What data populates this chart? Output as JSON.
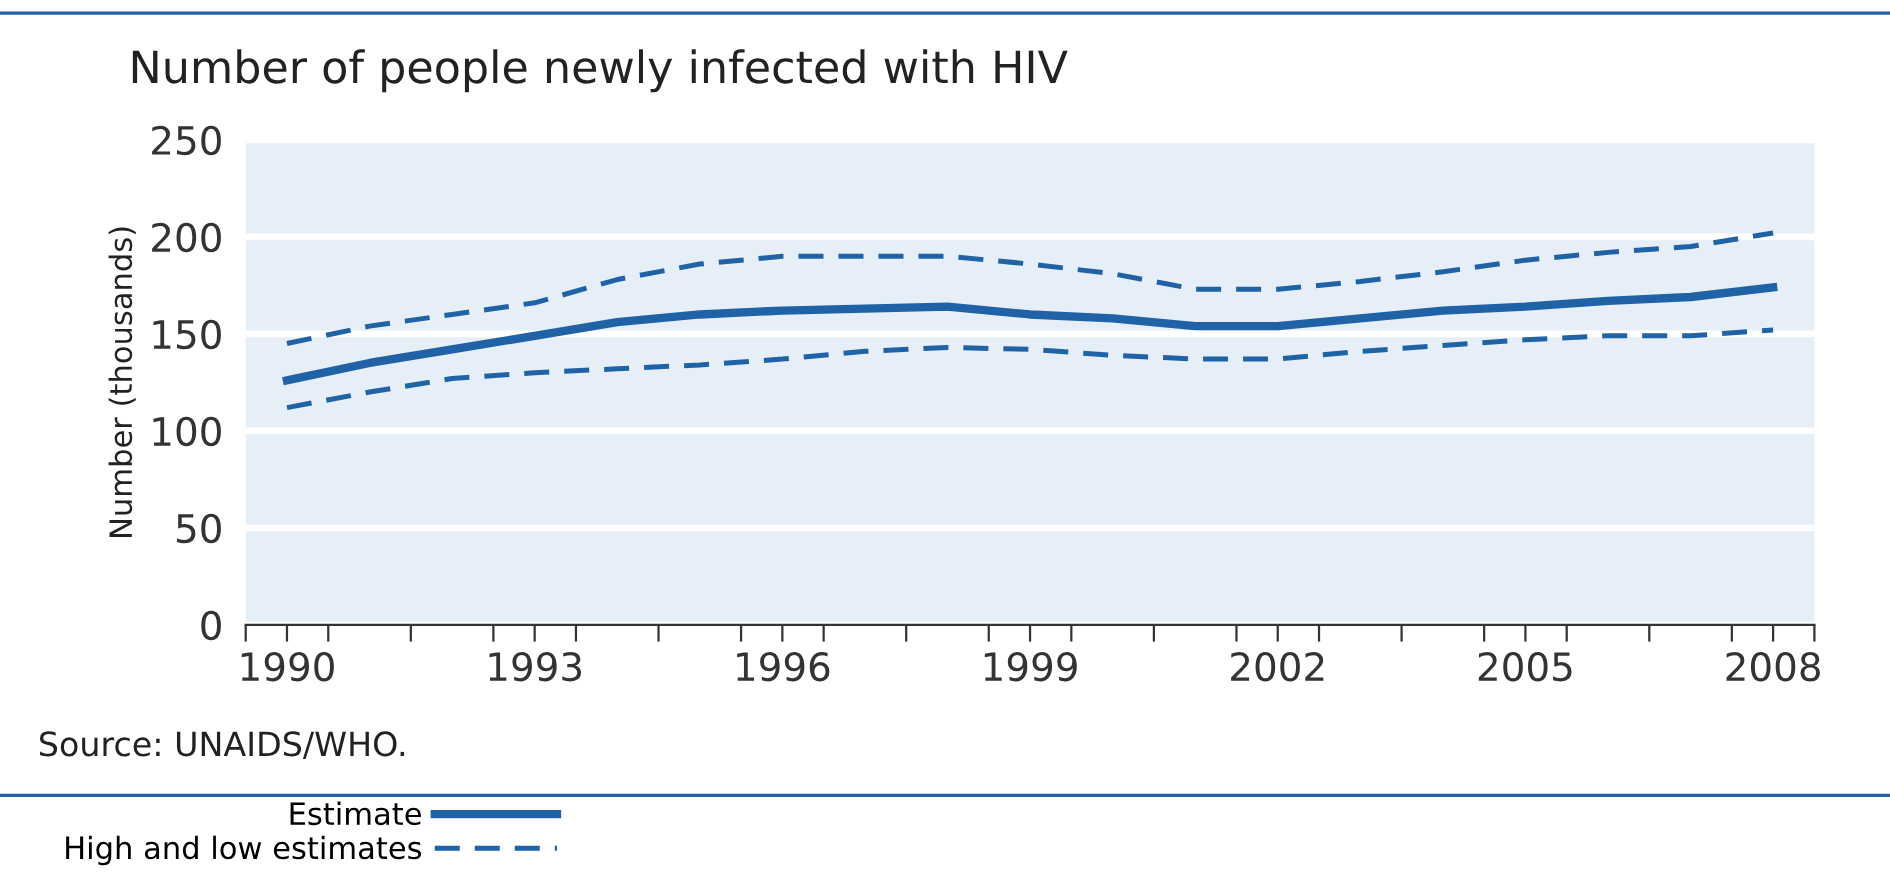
{
  "chart_data": {
    "type": "line",
    "title": "Number of people newly infected with HIV",
    "ylabel": "Number (thousands)",
    "x": [
      1990.5,
      1991.5,
      1992.5,
      1993.5,
      1994.5,
      1995.5,
      1996.5,
      1997.5,
      1998.5,
      1999.5,
      2000.5,
      2001.5,
      2002.5,
      2003.5,
      2004.5,
      2005.5,
      2006.5,
      2007.5,
      2008.5
    ],
    "series": [
      {
        "name": "Estimate",
        "color": "#1f62a5",
        "line_style": "solid",
        "values": [
          126,
          135,
          142,
          149,
          156,
          160,
          162,
          163,
          164,
          160,
          158,
          154,
          154,
          158,
          162,
          164,
          167,
          169,
          174
        ]
      },
      {
        "name": "High and low estimates",
        "color": "#1f62a5",
        "line_style": "dashed",
        "values": [
          145,
          154,
          160,
          166,
          178,
          186,
          190,
          190,
          190,
          186,
          181,
          173,
          173,
          177,
          182,
          188,
          192,
          195,
          202
        ]
      },
      {
        "color": "#1f62a5",
        "line_style": "dashed",
        "values": [
          112,
          120,
          127,
          130,
          132,
          134,
          137,
          141,
          143,
          142,
          139,
          137,
          137,
          141,
          144,
          147,
          149,
          149,
          152
        ]
      }
    ],
    "xlim": [
      1990,
      2009
    ],
    "xticks": [
      {
        "value": 1990,
        "label": null
      },
      {
        "value": 1990.5,
        "label": "1990"
      },
      {
        "value": 1991,
        "label": null
      },
      {
        "value": 1992,
        "label": null
      },
      {
        "value": 1993,
        "label": null
      },
      {
        "value": 1993.5,
        "label": "1993"
      },
      {
        "value": 1994,
        "label": null
      },
      {
        "value": 1995,
        "label": null
      },
      {
        "value": 1996,
        "label": null
      },
      {
        "value": 1996.5,
        "label": "1996"
      },
      {
        "value": 1997,
        "label": null
      },
      {
        "value": 1998,
        "label": null
      },
      {
        "value": 1999,
        "label": null
      },
      {
        "value": 1999.5,
        "label": "1999"
      },
      {
        "value": 2000,
        "label": null
      },
      {
        "value": 2001,
        "label": null
      },
      {
        "value": 2002,
        "label": null
      },
      {
        "value": 2002.5,
        "label": "2002"
      },
      {
        "value": 2003,
        "label": null
      },
      {
        "value": 2004,
        "label": null
      },
      {
        "value": 2005,
        "label": null
      },
      {
        "value": 2005.5,
        "label": "2005"
      },
      {
        "value": 2006,
        "label": null
      },
      {
        "value": 2007,
        "label": null
      },
      {
        "value": 2008,
        "label": null
      },
      {
        "value": 2008.5,
        "label": "2008"
      },
      {
        "value": 2009,
        "label": null
      }
    ],
    "ylim": [
      0,
      250
    ],
    "yticks": [
      0,
      50,
      100,
      150,
      200,
      250
    ],
    "grid": "y",
    "legend": "bottom left",
    "marker": "none",
    "annotations": [
      "Source: UNAIDS/WHO."
    ]
  }
}
